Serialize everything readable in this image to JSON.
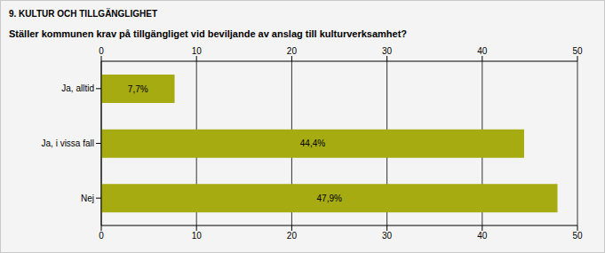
{
  "chart_data": {
    "type": "bar",
    "title": "9. KULTUR OCH TILLGÄNGLIGHET",
    "subtitle": "Ställer kommunen krav på tillgängliget vid beviljande av anslag till kulturverksamhet?",
    "orientation": "horizontal",
    "categories": [
      "Ja, alltid",
      "Ja, i vissa fall",
      "Nej"
    ],
    "values": [
      7.7,
      44.4,
      47.9
    ],
    "value_labels": [
      "7,7%",
      "44,4%",
      "47,9%"
    ],
    "data_labels": true,
    "color": "#a5ab10",
    "xlim": [
      0,
      50
    ],
    "xticks": [
      0,
      10,
      20,
      30,
      40,
      50
    ],
    "grid": true
  }
}
